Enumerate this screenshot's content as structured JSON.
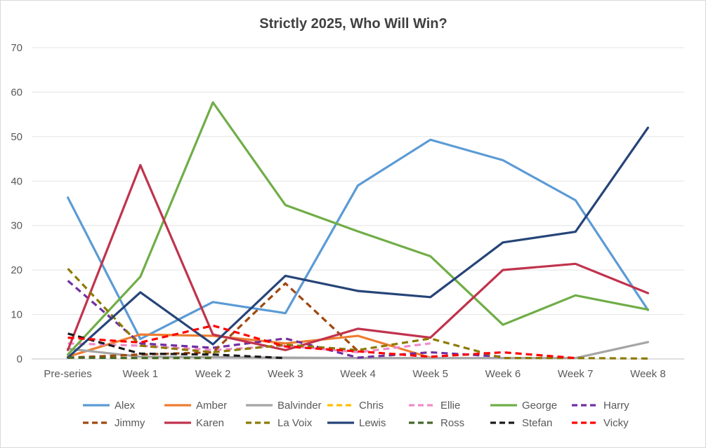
{
  "chart_data": {
    "type": "line",
    "title": "Strictly 2025, Who Will Win?",
    "xlabel": "",
    "ylabel": "",
    "ylim": [
      0,
      70
    ],
    "yticks": [
      0,
      10,
      20,
      30,
      40,
      50,
      60,
      70
    ],
    "grid": true,
    "legend_position": "bottom",
    "categories": [
      "Pre-series",
      "Week 1",
      "Week 2",
      "Week 3",
      "Week 4",
      "Week 5",
      "Week 6",
      "Week 7",
      "Week 8"
    ],
    "series": [
      {
        "name": "Alex",
        "color": "#5b9bd5",
        "dash": false,
        "values": [
          36.3,
          4.5,
          12.8,
          10.3,
          39.0,
          49.3,
          44.7,
          35.7,
          11.0
        ]
      },
      {
        "name": "Amber",
        "color": "#ed7d31",
        "dash": false,
        "values": [
          0.5,
          5.5,
          5.2,
          3.5,
          5.2,
          0.3,
          null,
          null,
          null
        ]
      },
      {
        "name": "Balvinder",
        "color": "#a5a5a5",
        "dash": false,
        "values": [
          2.3,
          0.5,
          0.4,
          0.3,
          0.2,
          0.2,
          0.2,
          0.2,
          3.8
        ]
      },
      {
        "name": "Chris",
        "color": "#ffc000",
        "dash": true,
        "values": [
          0.3,
          0.2,
          0.2,
          null,
          null,
          null,
          null,
          null,
          null
        ]
      },
      {
        "name": "Ellie",
        "color": "#f08bc8",
        "dash": true,
        "values": [
          3.5,
          3.0,
          2.0,
          3.0,
          1.5,
          3.5,
          null,
          null,
          null
        ]
      },
      {
        "name": "George",
        "color": "#70ad47",
        "dash": false,
        "values": [
          1.0,
          18.5,
          57.7,
          34.6,
          28.7,
          23.1,
          7.7,
          14.3,
          11.1
        ]
      },
      {
        "name": "Harry",
        "color": "#7030a0",
        "dash": true,
        "values": [
          17.6,
          3.5,
          2.5,
          4.6,
          0.3,
          1.5,
          0.5,
          null,
          null
        ]
      },
      {
        "name": "Jimmy",
        "color": "#9e480e",
        "dash": true,
        "values": [
          0.3,
          1.0,
          1.5,
          17.0,
          1.8,
          null,
          null,
          null,
          null
        ]
      },
      {
        "name": "Karen",
        "color": "#c0334d",
        "dash": false,
        "values": [
          2.0,
          43.6,
          5.5,
          2.0,
          6.8,
          4.8,
          20.0,
          21.4,
          14.8
        ]
      },
      {
        "name": "La Voix",
        "color": "#8b7a00",
        "dash": true,
        "values": [
          20.3,
          3.0,
          1.5,
          3.2,
          2.0,
          4.6,
          0.2,
          0.2,
          0.1
        ]
      },
      {
        "name": "Lewis",
        "color": "#264478",
        "dash": false,
        "values": [
          0.3,
          15.0,
          3.3,
          18.7,
          15.3,
          13.9,
          26.2,
          28.6,
          52.0
        ]
      },
      {
        "name": "Ross",
        "color": "#43682b",
        "dash": true,
        "values": [
          0.3,
          0.2,
          0.2,
          null,
          null,
          null,
          null,
          null,
          null
        ]
      },
      {
        "name": "Stefan",
        "color": "#1a1a1a",
        "dash": true,
        "values": [
          5.7,
          1.2,
          1.0,
          0.2,
          null,
          null,
          null,
          null,
          null
        ]
      },
      {
        "name": "Vicky",
        "color": "#ff0000",
        "dash": true,
        "values": [
          4.8,
          3.7,
          7.5,
          2.8,
          1.7,
          0.5,
          1.5,
          0.2,
          null
        ]
      }
    ]
  }
}
